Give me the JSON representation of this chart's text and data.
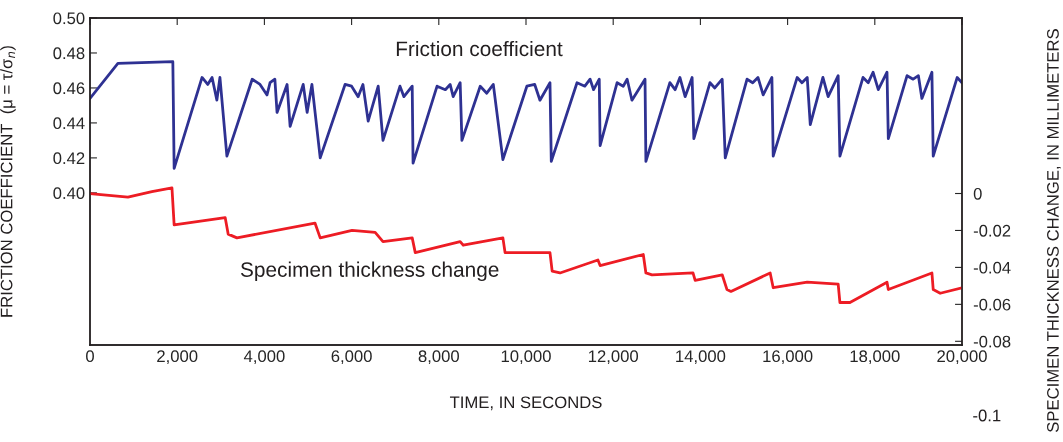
{
  "chart_data": {
    "type": "line",
    "xlabel": "TIME, IN SECONDS",
    "ylabel": "FRICTION COEFFICIENT  (μ = τ/σ$_{n}$)",
    "y2label": "SPECIMEN THICKNESS CHANGE, IN MILLIMETERS",
    "xlim": [
      0,
      20000
    ],
    "xticks": [
      0,
      {
        "value": 2000,
        "label": "2,000"
      },
      {
        "value": 4000,
        "label": "4,000"
      },
      {
        "value": 6000,
        "label": "6,000"
      },
      {
        "value": 8000,
        "label": "8,000"
      },
      {
        "value": 10000,
        "label": "10,000"
      },
      {
        "value": 12000,
        "label": "12,000"
      },
      {
        "value": 14000,
        "label": "14,000"
      },
      {
        "value": 16000,
        "label": "16,000"
      },
      {
        "value": 18000,
        "label": "18,000"
      },
      {
        "value": 20000,
        "label": "20,000"
      }
    ],
    "ylim": [
      0.313,
      0.5
    ],
    "yticks": [
      {
        "value": 0.4,
        "label": "0.40"
      },
      0.42,
      0.44,
      0.46,
      0.48,
      {
        "value": 0.5,
        "label": "0.50"
      }
    ],
    "y2lim": [
      -0.082,
      0.095
    ],
    "y2ticks": [
      0,
      -0.02,
      -0.04,
      -0.06,
      -0.08
    ],
    "grid": false,
    "legend": false,
    "marker": "none",
    "line_style": "solid",
    "annotations": [
      "-0.1"
    ],
    "series": [
      {
        "name": "Friction coefficient",
        "color": "#2e3192",
        "x": [
          0,
          640,
          1900,
          1930,
          2570,
          2700,
          2800,
          2910,
          2980,
          3140,
          3720,
          3900,
          4060,
          4130,
          4240,
          4290,
          4520,
          4590,
          4890,
          4980,
          5090,
          5280,
          5850,
          6000,
          6150,
          6260,
          6380,
          6610,
          6720,
          7110,
          7200,
          7390,
          7410,
          7960,
          8150,
          8260,
          8330,
          8490,
          8530,
          8950,
          9100,
          9250,
          9470,
          10020,
          10200,
          10320,
          10550,
          10580,
          11170,
          11350,
          11470,
          11550,
          11680,
          11700,
          12090,
          12230,
          12320,
          12430,
          12730,
          12750,
          13300,
          13420,
          13530,
          13650,
          13810,
          13850,
          14220,
          14330,
          14500,
          14570,
          15070,
          15200,
          15320,
          15440,
          15640,
          15670,
          16220,
          16330,
          16450,
          16520,
          16810,
          16930,
          17160,
          17200,
          17730,
          17850,
          17960,
          18080,
          18280,
          18310,
          18740,
          18880,
          19000,
          19080,
          19310,
          19340,
          19890,
          20000
        ],
        "values": [
          0.454,
          0.474,
          0.475,
          0.414,
          0.466,
          0.462,
          0.466,
          0.453,
          0.466,
          0.421,
          0.465,
          0.462,
          0.456,
          0.463,
          0.465,
          0.446,
          0.462,
          0.438,
          0.462,
          0.446,
          0.462,
          0.42,
          0.462,
          0.461,
          0.455,
          0.462,
          0.441,
          0.461,
          0.43,
          0.461,
          0.455,
          0.461,
          0.417,
          0.461,
          0.459,
          0.462,
          0.455,
          0.463,
          0.43,
          0.461,
          0.457,
          0.462,
          0.419,
          0.461,
          0.462,
          0.453,
          0.463,
          0.418,
          0.463,
          0.461,
          0.465,
          0.459,
          0.465,
          0.427,
          0.463,
          0.461,
          0.465,
          0.453,
          0.465,
          0.418,
          0.463,
          0.459,
          0.466,
          0.455,
          0.466,
          0.431,
          0.463,
          0.46,
          0.465,
          0.42,
          0.465,
          0.463,
          0.466,
          0.456,
          0.466,
          0.421,
          0.466,
          0.463,
          0.466,
          0.439,
          0.466,
          0.455,
          0.467,
          0.421,
          0.466,
          0.463,
          0.469,
          0.459,
          0.469,
          0.431,
          0.467,
          0.465,
          0.467,
          0.454,
          0.469,
          0.421,
          0.466,
          0.463
        ]
      },
      {
        "name": "Specimen thickness change",
        "color": "#ed1c24",
        "axis": "y2",
        "x": [
          0,
          870,
          1420,
          1880,
          1930,
          3100,
          3170,
          3370,
          5160,
          5280,
          6010,
          6540,
          6720,
          7390,
          7460,
          8490,
          8560,
          9470,
          9520,
          10550,
          10600,
          10780,
          11650,
          11700,
          12690,
          12750,
          12890,
          13830,
          13880,
          14500,
          14610,
          14700,
          15600,
          15670,
          16450,
          17160,
          17200,
          17430,
          18280,
          18310,
          19310,
          19340,
          19500,
          20000
        ],
        "values": [
          0,
          -0.002,
          0.001,
          0.003,
          -0.017,
          -0.013,
          -0.022,
          -0.024,
          -0.016,
          -0.024,
          -0.02,
          -0.021,
          -0.026,
          -0.024,
          -0.032,
          -0.026,
          -0.028,
          -0.024,
          -0.032,
          -0.032,
          -0.042,
          -0.043,
          -0.036,
          -0.039,
          -0.033,
          -0.043,
          -0.044,
          -0.043,
          -0.047,
          -0.044,
          -0.052,
          -0.053,
          -0.043,
          -0.051,
          -0.048,
          -0.049,
          -0.059,
          -0.059,
          -0.048,
          -0.052,
          -0.043,
          -0.052,
          -0.054,
          -0.051
        ]
      }
    ]
  }
}
